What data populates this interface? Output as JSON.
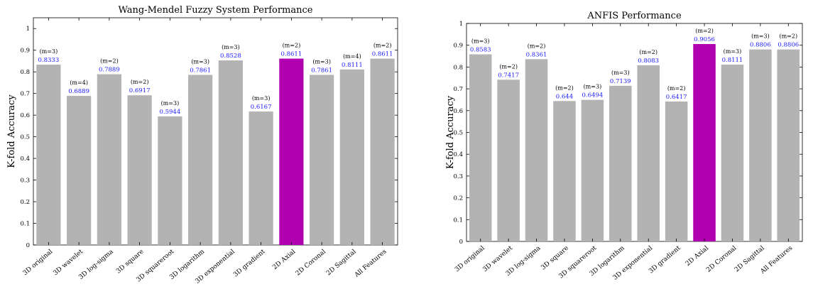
{
  "chart_data": [
    {
      "type": "bar",
      "title": "Wang-Mendel Fuzzy System Performance",
      "xlabel": "",
      "ylabel": "K-fold Accuracy",
      "ylim": [
        0,
        1.05
      ],
      "yticks": [
        0,
        0.1,
        0.2,
        0.3,
        0.4,
        0.5,
        0.6,
        0.7,
        0.8,
        0.9,
        1
      ],
      "categories": [
        "3D original",
        "3D wavelet",
        "3D log-sigma",
        "3D square",
        "3D squareroot",
        "3D logarithm",
        "3D exponential",
        "3D gradient",
        "2D Axial",
        "2D Coronal",
        "2D Sagittal",
        "All Features"
      ],
      "values": [
        0.8333,
        0.6889,
        0.7889,
        0.6917,
        0.5944,
        0.7861,
        0.8528,
        0.6167,
        0.8611,
        0.7861,
        0.8111,
        0.8611
      ],
      "value_labels": [
        "0.8333",
        "0.6889",
        "0.7889",
        "0.6917",
        "0.5944",
        "0.7861",
        "0.8528",
        "0.6167",
        "0.8611",
        "0.7861",
        "0.8111",
        "0.8611"
      ],
      "m_labels": [
        "(m=3)",
        "(m=4)",
        "(m=2)",
        "(m=2)",
        "(m=3)",
        "(m=3)",
        "(m=3)",
        "(m=3)",
        "(m=2)",
        "(m=3)",
        "(m=4)",
        "(m=2)"
      ],
      "highlight_index": 8,
      "colors": {
        "bar": "#b3b3b3",
        "highlight": "#b000b0",
        "value_text": "#1a1aff"
      },
      "grid": false
    },
    {
      "type": "bar",
      "title": "ANFIS Performance",
      "xlabel": "",
      "ylabel": "K-fold Accuracy",
      "ylim": [
        0,
        1
      ],
      "yticks": [
        0,
        0.1,
        0.2,
        0.3,
        0.4,
        0.5,
        0.6,
        0.7,
        0.8,
        0.9,
        1
      ],
      "categories": [
        "3D original",
        "3D wavelet",
        "3D log-sigma",
        "3D square",
        "3D squareroot",
        "3D logarithm",
        "3D exponential",
        "3D gradient",
        "2D Axial",
        "2D Coronal",
        "2D Sagittal",
        "All Features"
      ],
      "values": [
        0.8583,
        0.7417,
        0.8361,
        0.644,
        0.6494,
        0.7139,
        0.8083,
        0.6417,
        0.9056,
        0.8111,
        0.8806,
        0.8806
      ],
      "value_labels": [
        "0.8583",
        "0.7417",
        "0.8361",
        "0.644",
        "0.6494",
        "0.7139",
        "0.8083",
        "0.6417",
        "0.9056",
        "0.8111",
        "0.8806",
        "0.8806"
      ],
      "m_labels": [
        "(m=3)",
        "(m=2)",
        "(m=2)",
        "(m=2)",
        "(m=3)",
        "(m=3)",
        "(m=2)",
        "(m=2)",
        "(m=2)",
        "(m=3)",
        "(m=3)",
        "(m=2)"
      ],
      "highlight_index": 8,
      "colors": {
        "bar": "#b3b3b3",
        "highlight": "#b000b0",
        "value_text": "#1a1aff"
      },
      "grid": false
    }
  ]
}
